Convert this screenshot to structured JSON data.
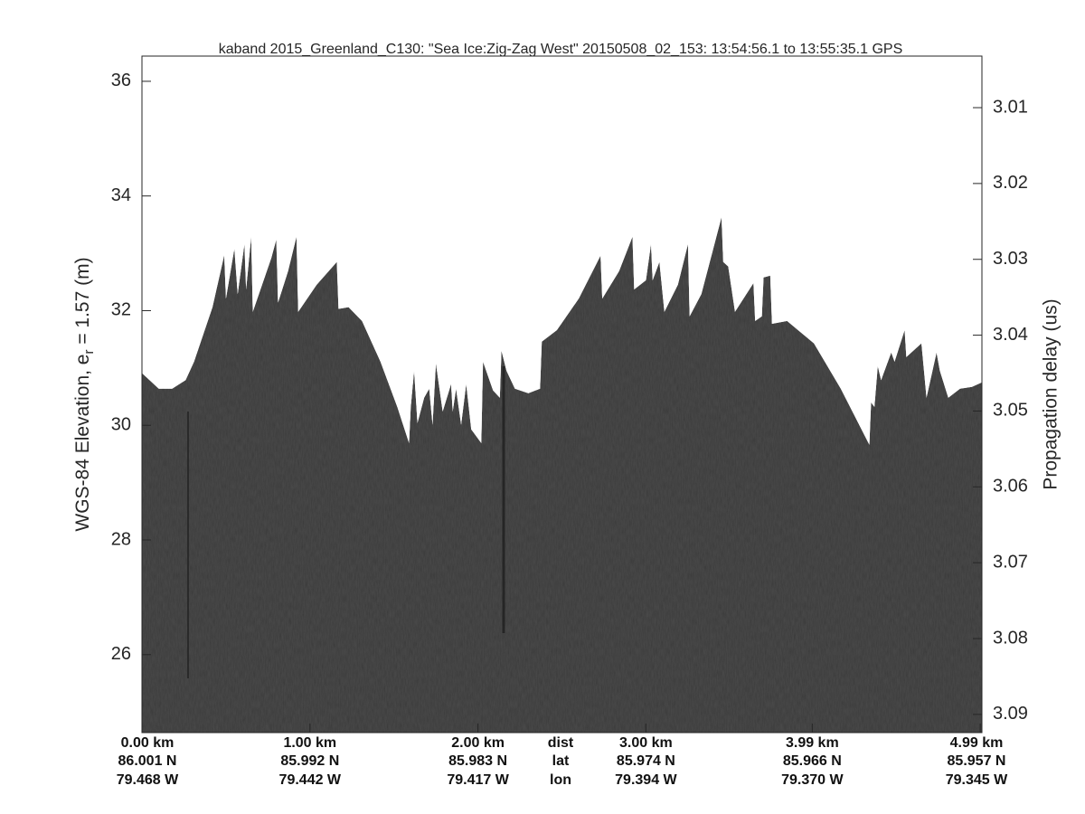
{
  "chart_data": {
    "type": "area",
    "title": "kaband 2015_Greenland_C130: \"Sea Ice:Zig-Zag West\"  20150508_02_153: 13:54:56.1 to 13:55:35.1 GPS",
    "ylabel": {
      "text": "WGS-84 Elevation, e",
      "subscript": "r",
      "suffix": " = 1.57 (m)"
    },
    "y2label": "Propagation delay (us)",
    "xlim": [
      0,
      5.0
    ],
    "xticks": [
      {
        "value": 0,
        "label": "0.00 km"
      },
      {
        "value": 1,
        "label": "1.00 km"
      },
      {
        "value": 2,
        "label": "2.00 km"
      },
      {
        "value": 3,
        "label": "3.00 km"
      },
      {
        "value": 3.99,
        "label": "3.99 km"
      },
      {
        "value": 4.99,
        "label": "4.99 km"
      }
    ],
    "lat_labels": [
      "86.001 N",
      "85.992 N",
      "85.983 N",
      "85.974 N",
      "85.966 N",
      "85.957 N"
    ],
    "lon_labels": [
      "79.468 W",
      "79.442 W",
      "79.417 W",
      "79.394 W",
      "79.370 W",
      "79.345 W"
    ],
    "row_labels": [
      "dist",
      "lat",
      "lon"
    ],
    "ylim": [
      24.64,
      36.44
    ],
    "yticks": [
      26,
      28,
      30,
      32,
      34,
      36
    ],
    "y2lim": [
      3.0924,
      3.0032
    ],
    "y2ticks": [
      3.01,
      3.02,
      3.03,
      3.04,
      3.05,
      3.06,
      3.07,
      3.08,
      3.09
    ],
    "series": [
      {
        "color": "#4b4b4b",
        "x": [
          0.0,
          0.1,
          0.18,
          0.26,
          0.31,
          0.42,
          0.49,
          0.5,
          0.55,
          0.57,
          0.61,
          0.62,
          0.65,
          0.66,
          0.77,
          0.8,
          0.81,
          0.87,
          0.92,
          0.93,
          1.04,
          1.16,
          1.17,
          1.23,
          1.31,
          1.42,
          1.52,
          1.59,
          1.6,
          1.62,
          1.64,
          1.68,
          1.71,
          1.73,
          1.75,
          1.79,
          1.84,
          1.85,
          1.87,
          1.9,
          1.93,
          1.96,
          2.02,
          2.03,
          2.09,
          2.13,
          2.14,
          2.17,
          2.22,
          2.3,
          2.37,
          2.38,
          2.47,
          2.6,
          2.73,
          2.74,
          2.84,
          2.92,
          2.93,
          3.0,
          3.03,
          3.04,
          3.08,
          3.11,
          3.19,
          3.25,
          3.26,
          3.33,
          3.45,
          3.46,
          3.49,
          3.53,
          3.64,
          3.65,
          3.69,
          3.7,
          3.74,
          3.75,
          3.84,
          4.0,
          4.16,
          4.33,
          4.34,
          4.36,
          4.38,
          4.4,
          4.46,
          4.48,
          4.54,
          4.55,
          4.64,
          4.67,
          4.73,
          4.75,
          4.8,
          4.87,
          4.94,
          5.0
        ],
        "values": [
          30.91,
          30.64,
          30.64,
          30.79,
          31.11,
          32.06,
          32.97,
          32.21,
          33.08,
          32.29,
          33.16,
          32.37,
          33.29,
          31.98,
          32.92,
          33.24,
          32.14,
          32.69,
          33.29,
          31.98,
          32.45,
          32.85,
          32.03,
          32.06,
          31.82,
          31.11,
          30.32,
          29.69,
          30.32,
          30.95,
          30.04,
          30.48,
          30.64,
          30.01,
          31.08,
          30.24,
          30.72,
          30.24,
          30.64,
          30.01,
          30.72,
          29.93,
          29.69,
          31.11,
          30.61,
          30.48,
          31.3,
          30.95,
          30.64,
          30.56,
          30.64,
          31.46,
          31.66,
          32.21,
          32.96,
          32.21,
          32.69,
          33.29,
          32.37,
          32.53,
          33.16,
          32.53,
          32.85,
          31.98,
          32.45,
          33.16,
          31.9,
          32.29,
          33.63,
          32.85,
          32.77,
          31.98,
          32.48,
          31.82,
          31.9,
          32.58,
          32.61,
          31.77,
          31.82,
          31.43,
          30.64,
          29.66,
          30.4,
          30.32,
          31.03,
          30.79,
          31.27,
          31.11,
          31.66,
          31.19,
          31.43,
          30.48,
          31.27,
          30.95,
          30.48,
          30.64,
          30.67,
          30.75
        ]
      }
    ]
  }
}
